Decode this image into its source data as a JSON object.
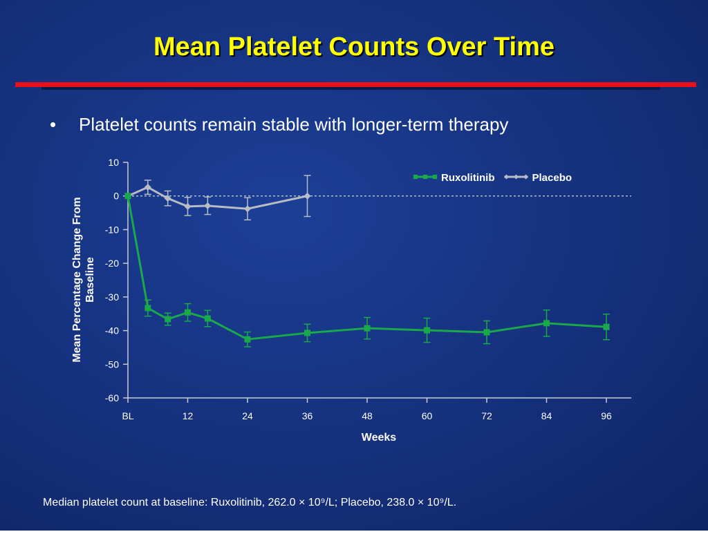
{
  "chart_data": {
    "type": "line",
    "title": "Mean Platelet Counts Over Time",
    "subtitle": "Platelet counts remain stable with longer-term therapy",
    "xlabel": "Weeks",
    "ylabel": "Mean Percentage Change From Baseline",
    "footnote": "Median platelet count at baseline: Ruxolitinib, 262.0 × 10⁹/L; Placebo, 238.0 × 10⁹/L.",
    "xlim": [
      0,
      96
    ],
    "xticks": [
      {
        "value": 0,
        "label": "BL"
      },
      12,
      24,
      36,
      48,
      60,
      72,
      84,
      96
    ],
    "ylim": [
      -60,
      10
    ],
    "yticks": [
      10,
      0,
      -10,
      -20,
      -30,
      -40,
      -50,
      -60
    ],
    "reference_line": 0,
    "legend": "top-right",
    "series": [
      {
        "name": "Ruxolitinib",
        "color": "#1aa84a",
        "marker": "square",
        "x": [
          0,
          4,
          8,
          12,
          16,
          24,
          36,
          48,
          60,
          72,
          84,
          96
        ],
        "values": [
          0,
          -33.3,
          -36.6,
          -34.6,
          -36.4,
          -42.6,
          -40.7,
          -39.3,
          -39.9,
          -40.5,
          -37.8,
          -38.9
        ],
        "errors": [
          0,
          2.4,
          1.8,
          2.6,
          2.4,
          2.2,
          2.6,
          3.2,
          3.6,
          3.4,
          3.9,
          3.8
        ]
      },
      {
        "name": "Placebo",
        "color": "#b8bcc4",
        "marker": "diamond",
        "x": [
          0,
          4,
          8,
          12,
          16,
          24,
          36
        ],
        "values": [
          0,
          2.6,
          -0.7,
          -3.1,
          -2.9,
          -3.8,
          0
        ],
        "errors": [
          0,
          2.1,
          2.2,
          2.7,
          2.6,
          3.3,
          6.1
        ]
      }
    ]
  }
}
